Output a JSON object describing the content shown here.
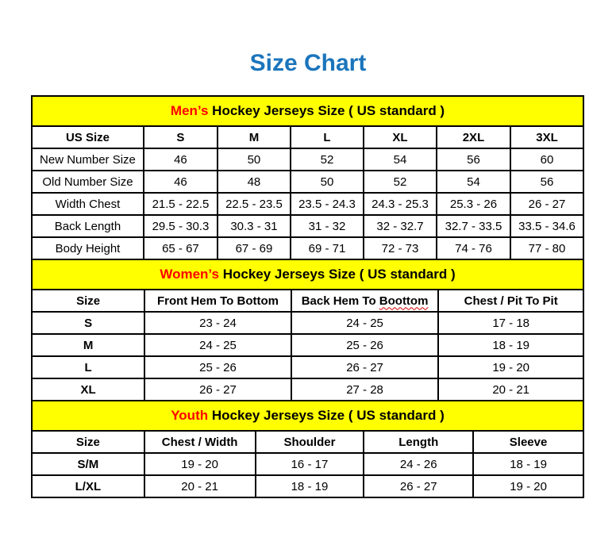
{
  "page": {
    "title": "Size Chart",
    "title_color": "#1b75bc",
    "accent_red": "#ff0000",
    "section_header_yellow": "#ffff00",
    "border_color": "#000000",
    "background": "#ffffff"
  },
  "sections": [
    {
      "name": "men",
      "heading": {
        "highlight": "Men’s",
        "rest": " Hockey Jerseys Size ( US standard )"
      },
      "columns": [
        "US Size",
        "S",
        "M",
        "L",
        "XL",
        "2XL",
        "3XL"
      ],
      "rows": [
        [
          "New Number Size",
          "46",
          "50",
          "52",
          "54",
          "56",
          "60"
        ],
        [
          "Old Number Size",
          "46",
          "48",
          "50",
          "52",
          "54",
          "56"
        ],
        [
          "Width Chest",
          "21.5 - 22.5",
          "22.5 - 23.5",
          "23.5 - 24.3",
          "24.3 - 25.3",
          "25.3 - 26",
          "26 - 27"
        ],
        [
          "Back Length",
          "29.5 - 30.3",
          "30.3 - 31",
          "31 - 32",
          "32 - 32.7",
          "32.7 - 33.5",
          "33.5 - 34.6"
        ],
        [
          "Body Height",
          "65 - 67",
          "67 - 69",
          "69 - 71",
          "72 - 73",
          "74 - 76",
          "77 - 80"
        ]
      ],
      "label_bold": false
    },
    {
      "name": "women",
      "heading": {
        "highlight": "Women’s",
        "rest": " Hockey Jerseys Size ( US standard )"
      },
      "columns": [
        "Size",
        "Front Hem To Bottom",
        {
          "pre": "Back Hem To ",
          "squiggle": "Boottom"
        },
        "Chest / Pit To Pit"
      ],
      "rows": [
        [
          "S",
          "23 - 24",
          "24 - 25",
          "17 - 18"
        ],
        [
          "M",
          "24 - 25",
          "25 - 26",
          "18 - 19"
        ],
        [
          "L",
          "25 - 26",
          "26 - 27",
          "19 - 20"
        ],
        [
          "XL",
          "26 - 27",
          "27 - 28",
          "20 - 21"
        ]
      ],
      "label_bold": true
    },
    {
      "name": "youth",
      "heading": {
        "highlight": "Youth",
        "rest": " Hockey Jerseys Size ( US standard )"
      },
      "columns": [
        "Size",
        "Chest / Width",
        "Shoulder",
        "Length",
        "Sleeve"
      ],
      "rows": [
        [
          "S/M",
          "19 - 20",
          "16 - 17",
          "24 - 26",
          "18 - 19"
        ],
        [
          "L/XL",
          "20 - 21",
          "18 - 19",
          "26 - 27",
          "19 - 20"
        ]
      ],
      "label_bold": true
    }
  ]
}
